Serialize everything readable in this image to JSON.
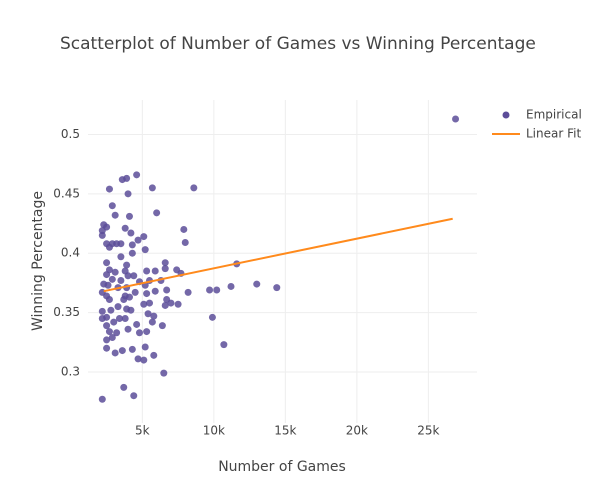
{
  "chart_data": {
    "type": "scatter",
    "title": "Scatterplot of Number of Games vs Winning Percentage",
    "x_label": "Number of Games",
    "y_label": "Winning Percentage",
    "xlim": [
      1200,
      28400
    ],
    "ylim": [
      0.257,
      0.529
    ],
    "xticks": [
      {
        "value": 5000,
        "label": "5k"
      },
      {
        "value": 10000,
        "label": "10k"
      },
      {
        "value": 15000,
        "label": "15k"
      },
      {
        "value": 20000,
        "label": "20k"
      },
      {
        "value": 25000,
        "label": "25k"
      }
    ],
    "yticks": [
      0.3,
      0.35,
      0.4,
      0.45,
      0.5
    ],
    "grid": true,
    "legend": "outside-right",
    "series": [
      {
        "name": "Empirical",
        "mode": "markers",
        "color": "#5c4d99",
        "x": [
          26900,
          4600,
          3600,
          3900,
          5700,
          8600,
          2700,
          4000,
          2900,
          4100,
          6000,
          3100,
          2300,
          2500,
          2200,
          2200,
          3800,
          7900,
          5100,
          4200,
          2500,
          2900,
          3200,
          3500,
          4300,
          4700,
          8000,
          2700,
          5200,
          4300,
          3500,
          2500,
          6600,
          11600,
          3900,
          2700,
          3100,
          3800,
          5300,
          5900,
          6600,
          7400,
          7700,
          2500,
          4400,
          4000,
          3500,
          2900,
          5500,
          6300,
          4800,
          2300,
          2600,
          3300,
          3900,
          5200,
          13000,
          14400,
          11200,
          9700,
          10200,
          8200,
          6700,
          5900,
          2200,
          2500,
          3800,
          4500,
          5300,
          6700,
          3700,
          4100,
          2700,
          7500,
          7000,
          6600,
          5100,
          5500,
          3300,
          3900,
          2800,
          2200,
          4200,
          5400,
          5800,
          9900,
          2500,
          3400,
          2200,
          3800,
          4600,
          5700,
          6400,
          3000,
          2500,
          4000,
          3200,
          2700,
          4800,
          5300,
          2900,
          2500,
          10700,
          2500,
          5200,
          4300,
          3600,
          3100,
          5800,
          4700,
          5100,
          6500,
          3700,
          4400,
          2200
        ],
        "values": [
          0.513,
          0.466,
          0.462,
          0.463,
          0.455,
          0.455,
          0.454,
          0.45,
          0.44,
          0.431,
          0.434,
          0.432,
          0.424,
          0.422,
          0.419,
          0.415,
          0.421,
          0.42,
          0.414,
          0.417,
          0.408,
          0.408,
          0.408,
          0.408,
          0.407,
          0.411,
          0.409,
          0.405,
          0.403,
          0.4,
          0.397,
          0.392,
          0.392,
          0.391,
          0.39,
          0.386,
          0.384,
          0.385,
          0.385,
          0.385,
          0.387,
          0.386,
          0.383,
          0.382,
          0.381,
          0.381,
          0.377,
          0.378,
          0.377,
          0.377,
          0.376,
          0.374,
          0.373,
          0.371,
          0.371,
          0.373,
          0.374,
          0.371,
          0.372,
          0.369,
          0.369,
          0.367,
          0.369,
          0.368,
          0.367,
          0.364,
          0.364,
          0.367,
          0.366,
          0.361,
          0.361,
          0.363,
          0.361,
          0.357,
          0.358,
          0.356,
          0.357,
          0.358,
          0.355,
          0.353,
          0.352,
          0.351,
          0.352,
          0.349,
          0.347,
          0.346,
          0.346,
          0.345,
          0.345,
          0.345,
          0.34,
          0.342,
          0.339,
          0.342,
          0.339,
          0.336,
          0.333,
          0.334,
          0.333,
          0.334,
          0.329,
          0.327,
          0.323,
          0.32,
          0.321,
          0.319,
          0.318,
          0.316,
          0.314,
          0.311,
          0.31,
          0.299,
          0.287,
          0.28,
          0.277
        ]
      },
      {
        "name": "Linear Fit",
        "mode": "lines",
        "color": "#ff8a1c",
        "x": [
          2300,
          26700
        ],
        "values": [
          0.368,
          0.429
        ]
      }
    ]
  }
}
